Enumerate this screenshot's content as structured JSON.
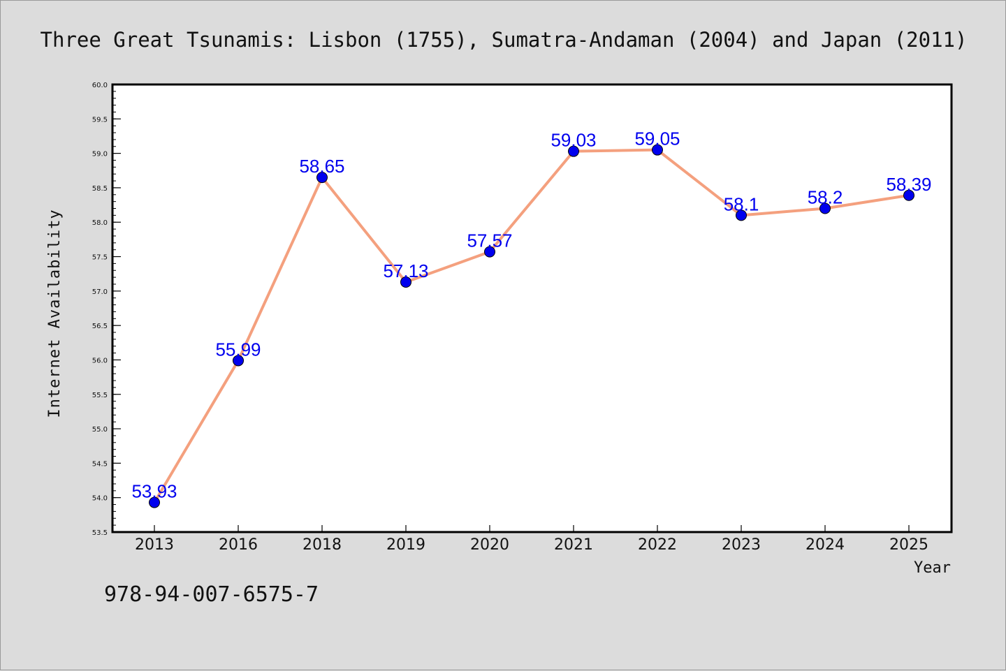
{
  "chart_data": {
    "type": "line",
    "title": "Three Great Tsunamis: Lisbon (1755), Sumatra-Andaman (2004) and Japan (2011)",
    "xlabel": "Year",
    "ylabel": "Internet Availability",
    "categories": [
      "2013",
      "2016",
      "2018",
      "2019",
      "2020",
      "2021",
      "2022",
      "2023",
      "2024",
      "2025"
    ],
    "series": [
      {
        "values": [
          53.93,
          55.99,
          58.65,
          57.13,
          57.57,
          59.03,
          59.05,
          58.1,
          58.2,
          58.39
        ],
        "data_labels": [
          "53.93",
          "55.99",
          "58.65",
          "57.13",
          "57.57",
          "59.03",
          "59.05",
          "58.1",
          "58.2",
          "58.39"
        ]
      }
    ],
    "ylim": [
      53.5,
      60.0
    ],
    "yticks": [
      "53.5",
      "54.0",
      "54.5",
      "55.0",
      "55.5",
      "56.0",
      "56.5",
      "57.0",
      "57.5",
      "58.0",
      "58.5",
      "59.0",
      "59.5",
      "60.0"
    ],
    "grid": false,
    "legend": "none",
    "colors": {
      "line": "#f4a07e",
      "marker": "#0000ee",
      "label": "#0000ee",
      "plot_bg": "#ffffff",
      "page_bg": "#dcdcdc"
    }
  },
  "footer": {
    "isbn": "978-94-007-6575-7"
  }
}
